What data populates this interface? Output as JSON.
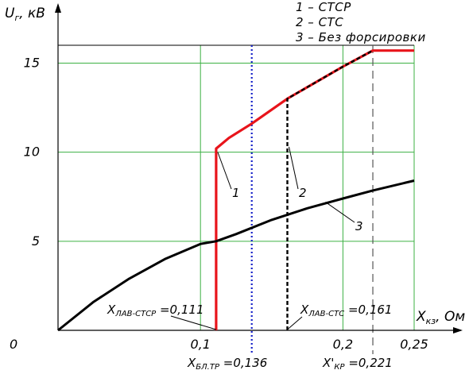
{
  "chart_data": {
    "type": "line",
    "xlabel": "Xкз, Ом",
    "ylabel": "Uг, кВ",
    "xlim": [
      0,
      0.25
    ],
    "ylim": [
      0,
      16
    ],
    "grid": true,
    "x_ticks": [
      {
        "value": 0.1,
        "label": "0,1"
      },
      {
        "value": 0.2,
        "label": "0,2"
      },
      {
        "value": 0.25,
        "label": "0,25"
      }
    ],
    "y_ticks": [
      {
        "value": 5,
        "label": "5"
      },
      {
        "value": 10,
        "label": "10"
      },
      {
        "value": 15,
        "label": "15"
      }
    ],
    "origin_label": "0",
    "legend": [
      {
        "label": "1 – СТСР"
      },
      {
        "label": "2 – СТС"
      },
      {
        "label": "3 – Без форсировки"
      }
    ],
    "series": [
      {
        "name": "1",
        "color": "#e8141b",
        "style": "solid",
        "points": [
          [
            0.111,
            0
          ],
          [
            0.111,
            10.2
          ],
          [
            0.12,
            10.8
          ],
          [
            0.136,
            11.6
          ],
          [
            0.161,
            13.0
          ],
          [
            0.2,
            14.8
          ],
          [
            0.221,
            15.7
          ],
          [
            0.25,
            15.7
          ]
        ]
      },
      {
        "name": "2",
        "color": "#000000",
        "style": "dashed",
        "points": [
          [
            0.161,
            0
          ],
          [
            0.161,
            13.0
          ],
          [
            0.2,
            14.8
          ],
          [
            0.221,
            15.7
          ]
        ]
      },
      {
        "name": "3",
        "color": "#000000",
        "style": "solid",
        "points": [
          [
            0,
            0
          ],
          [
            0.025,
            1.6
          ],
          [
            0.05,
            2.9
          ],
          [
            0.075,
            4.0
          ],
          [
            0.1,
            4.85
          ],
          [
            0.111,
            5.0
          ],
          [
            0.125,
            5.4
          ],
          [
            0.15,
            6.2
          ],
          [
            0.175,
            6.85
          ],
          [
            0.2,
            7.4
          ],
          [
            0.221,
            7.85
          ],
          [
            0.25,
            8.4
          ]
        ]
      }
    ],
    "markers": [
      {
        "x": 0.136,
        "color": "#1520c8",
        "style": "dotted",
        "label": "XБЛ.ТР =0,136"
      },
      {
        "x": 0.221,
        "color": "#555555",
        "style": "dashed",
        "label": "X'КР =0,221"
      }
    ],
    "annotations": [
      {
        "text": "XЛАВ-СТСР =0,111",
        "x": 0.111
      },
      {
        "text": "XЛАВ-СТС =0,161",
        "x": 0.161
      }
    ],
    "curve_labels": [
      "1",
      "2",
      "3"
    ]
  }
}
